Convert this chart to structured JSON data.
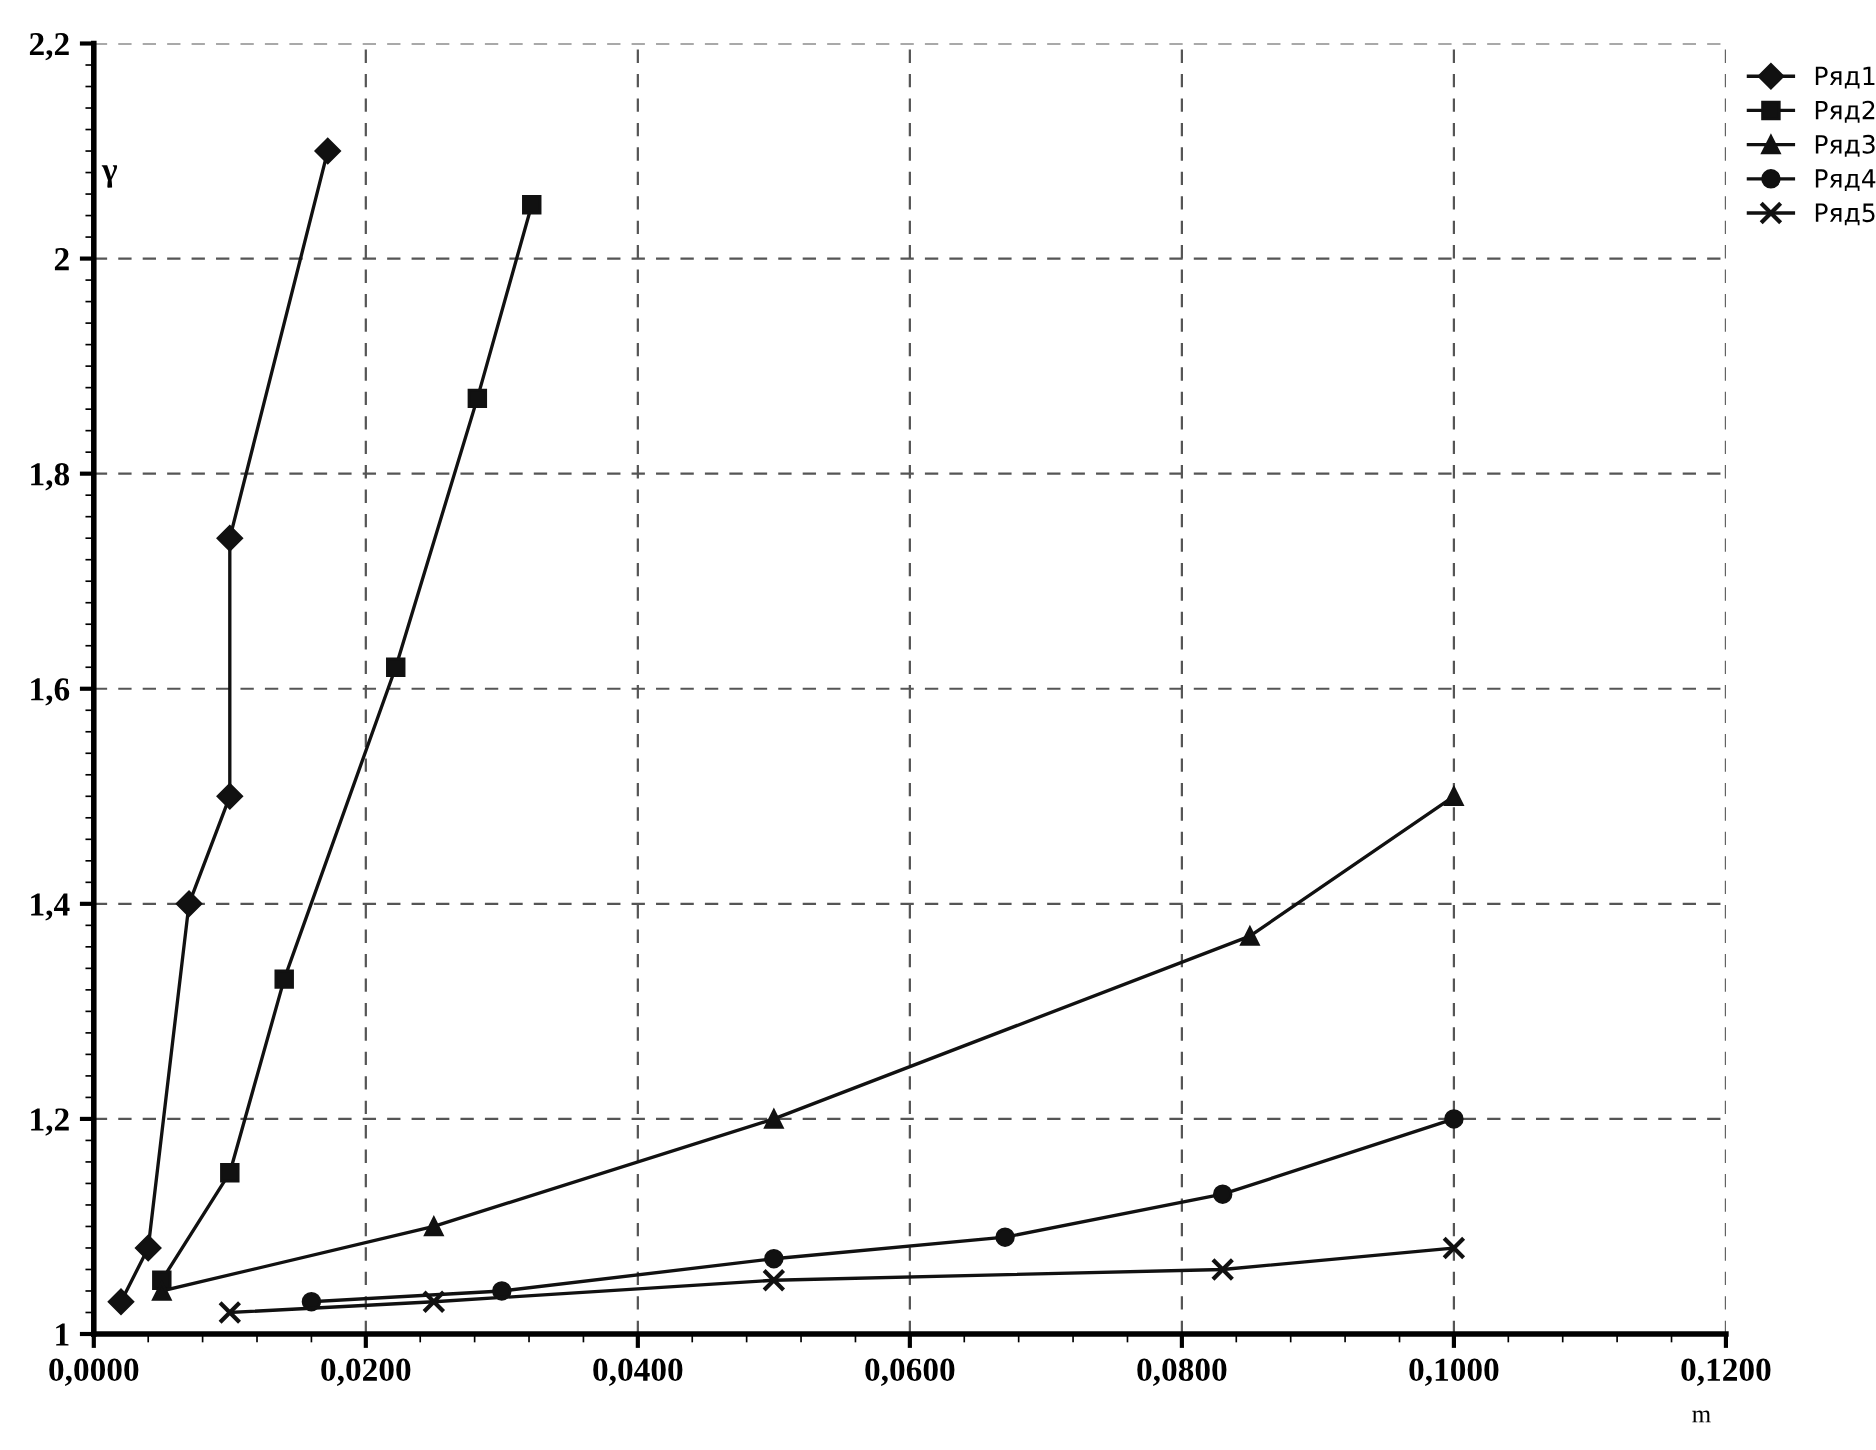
{
  "chart_data": {
    "type": "line",
    "xlabel": "m",
    "ylabel": "γ",
    "xlim": [
      0,
      0.12
    ],
    "ylim": [
      1,
      2.2
    ],
    "xticks": [
      {
        "value": 0,
        "label": "0,0000"
      },
      {
        "value": 0.02,
        "label": "0,0200"
      },
      {
        "value": 0.04,
        "label": "0,0400"
      },
      {
        "value": 0.06,
        "label": "0,0600"
      },
      {
        "value": 0.08,
        "label": "0,0800"
      },
      {
        "value": 0.1,
        "label": "0,1000"
      },
      {
        "value": 0.12,
        "label": "0,1200"
      }
    ],
    "yticks": [
      1,
      {
        "value": 1.2,
        "label": "1,2"
      },
      {
        "value": 1.4,
        "label": "1,4"
      },
      {
        "value": 1.6,
        "label": "1,6"
      },
      {
        "value": 1.8,
        "label": "1,8"
      },
      2,
      {
        "value": 2.2,
        "label": "2,2"
      }
    ],
    "grid": true,
    "legend": "top right",
    "line_style": "solid",
    "series": [
      {
        "name": "Ряд1",
        "color": "#111111",
        "marker": "diamond",
        "x": [
          0.002,
          0.004,
          0.007,
          0.01,
          0.01,
          0.0172
        ],
        "values": [
          1.03,
          1.08,
          1.4,
          1.5,
          1.74,
          2.1
        ]
      },
      {
        "name": "Ряд2",
        "color": "#111111",
        "marker": "square",
        "x": [
          0.005,
          0.01,
          0.014,
          0.0222,
          0.0282,
          0.0322
        ],
        "values": [
          1.05,
          1.15,
          1.33,
          1.62,
          1.87,
          2.05
        ]
      },
      {
        "name": "Ряд3",
        "color": "#111111",
        "marker": "triangle",
        "x": [
          0.005,
          0.025,
          0.05,
          0.085,
          0.1
        ],
        "values": [
          1.04,
          1.1,
          1.2,
          1.37,
          1.5
        ]
      },
      {
        "name": "Ряд4",
        "color": "#111111",
        "marker": "circle",
        "x": [
          0.016,
          0.03,
          0.05,
          0.067,
          0.083,
          0.1
        ],
        "values": [
          1.03,
          1.04,
          1.07,
          1.09,
          1.13,
          1.2
        ]
      },
      {
        "name": "Ряд5",
        "color": "#111111",
        "marker": "cross",
        "x": [
          0.01,
          0.025,
          0.05,
          0.083,
          0.1
        ],
        "values": [
          1.02,
          1.03,
          1.05,
          1.06,
          1.08
        ]
      }
    ]
  }
}
